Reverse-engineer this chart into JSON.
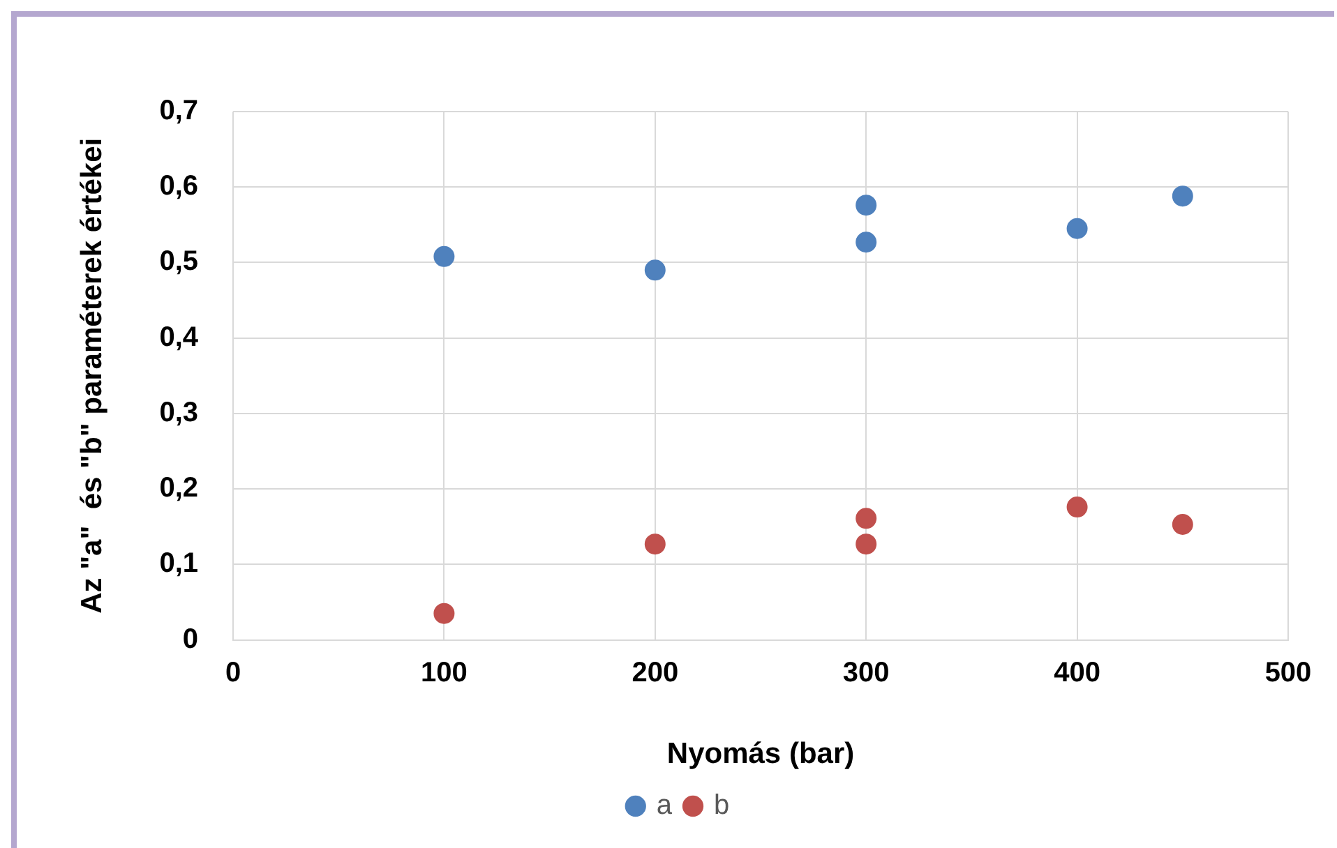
{
  "chart_data": {
    "type": "scatter",
    "xlabel": "Nyomás (bar)",
    "ylabel": "Az \"a\"  és \"b\" paraméterek értékei",
    "xlim": [
      0,
      500
    ],
    "xticks": [
      0,
      100,
      200,
      300,
      400,
      500
    ],
    "ylim": [
      0,
      0.7
    ],
    "yticks": [
      {
        "value": 0,
        "label": "0"
      },
      {
        "value": 0.1,
        "label": "0,1"
      },
      {
        "value": 0.2,
        "label": "0,2"
      },
      {
        "value": 0.3,
        "label": "0,3"
      },
      {
        "value": 0.4,
        "label": "0,4"
      },
      {
        "value": 0.5,
        "label": "0,5"
      },
      {
        "value": 0.6,
        "label": "0,6"
      },
      {
        "value": 0.7,
        "label": "0,7"
      }
    ],
    "grid": true,
    "legend": "bottom",
    "marker": "circle",
    "series": [
      {
        "name": "a",
        "color": "#4f81bd",
        "x": [
          100,
          200,
          300,
          300,
          400,
          450
        ],
        "values": [
          0.508,
          0.49,
          0.576,
          0.527,
          0.545,
          0.588
        ]
      },
      {
        "name": "b",
        "color": "#c0504d",
        "x": [
          100,
          200,
          300,
          300,
          400,
          450
        ],
        "values": [
          0.035,
          0.127,
          0.161,
          0.127,
          0.176,
          0.153
        ]
      }
    ]
  }
}
